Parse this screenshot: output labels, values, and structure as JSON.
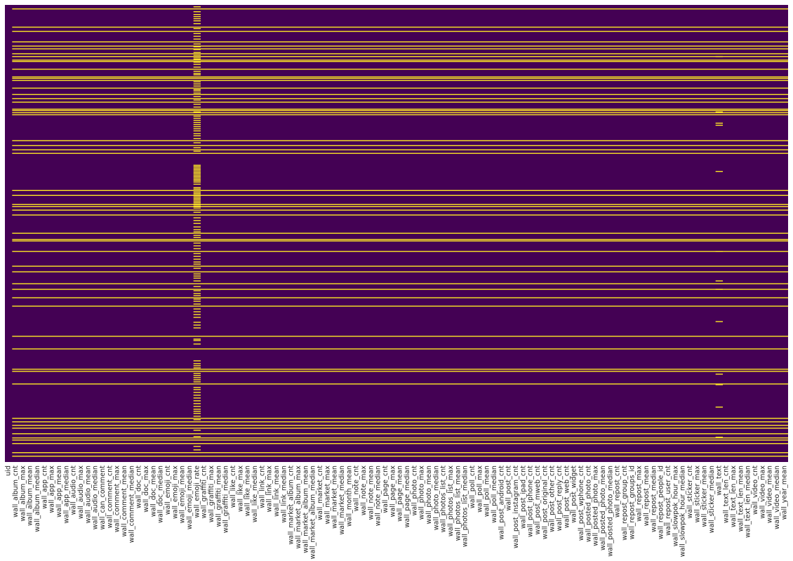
{
  "chart_data": {
    "type": "heatmap",
    "title": "",
    "xlabel": "",
    "ylabel": "",
    "colors": {
      "present": "#440154",
      "missing": "#fde725",
      "background": "#ffffff",
      "text": "#262626"
    },
    "n_rows": 652,
    "columns": [
      "uid",
      "wall_album_cnt",
      "wall_album_max",
      "wall_album_mean",
      "wall_album_median",
      "wall_app_cnt",
      "wall_app_max",
      "wall_app_mean",
      "wall_app_median",
      "wall_audio_cnt",
      "wall_audio_max",
      "wall_audio_mean",
      "wall_audio_median",
      "wall_can_comment",
      "wall_comment_cnt",
      "wall_comment_max",
      "wall_comment_mean",
      "wall_comment_median",
      "wall_doc_cnt",
      "wall_doc_max",
      "wall_doc_mean",
      "wall_doc_median",
      "wall_emoji_cnt",
      "wall_emoji_max",
      "wall_emoji_mean",
      "wall_emoji_median",
      "wall_emoji_rate",
      "wall_graffiti_cnt",
      "wall_graffiti_max",
      "wall_graffiti_mean",
      "wall_graffiti_median",
      "wall_like_cnt",
      "wall_like_max",
      "wall_like_mean",
      "wall_like_median",
      "wall_link_cnt",
      "wall_link_max",
      "wall_link_mean",
      "wall_link_median",
      "wall_market_album_cnt",
      "wall_market_album_max",
      "wall_market_album_mean",
      "wall_market_album_median",
      "wall_market_cnt",
      "wall_market_max",
      "wall_market_mean",
      "wall_market_median",
      "wall_month_mean",
      "wall_note_cnt",
      "wall_note_max",
      "wall_note_mean",
      "wall_note_median",
      "wall_page_cnt",
      "wall_page_max",
      "wall_page_mean",
      "wall_page_median",
      "wall_photo_cnt",
      "wall_photo_max",
      "wall_photo_mean",
      "wall_photo_median",
      "wall_photos_list_cnt",
      "wall_photos_list_max",
      "wall_photos_list_mean",
      "wall_photos_list_median",
      "wall_poll_cnt",
      "wall_poll_max",
      "wall_poll_mean",
      "wall_poll_median",
      "wall_post_android_cnt",
      "wall_post_cnt",
      "wall_post_instagram_cnt",
      "wall_post_ipad_cnt",
      "wall_post_iphone_cnt",
      "wall_post_mweb_cnt",
      "wall_post_original_cnt",
      "wall_post_other_cnt",
      "wall_post_reply_cnt",
      "wall_post_web_cnt",
      "wall_post_widget",
      "wall_post_wphone_cnt",
      "wall_posted_photo_cnt",
      "wall_posted_photo_max",
      "wall_posted_photo_mean",
      "wall_posted_photo_median",
      "wall_repost_cnt",
      "wall_repost_group_cnt",
      "wall_repost_groups_id",
      "wall_repost_max",
      "wall_repost_mean",
      "wall_repost_median",
      "wall_repost_people_id",
      "wall_repost_user_cnt",
      "wall_slowpok_hour_max",
      "wall_slowpok_hour_median",
      "wall_sticker_cnt",
      "wall_sticker_max",
      "wall_sticker_mean",
      "wall_sticker_median",
      "wall_text",
      "wall_text_len_cnt",
      "wall_text_len_max",
      "wall_text_len_mean",
      "wall_text_len_median",
      "wall_video_cnt",
      "wall_video_max",
      "wall_video_mean",
      "wall_video_median",
      "wall_year_mean"
    ],
    "full_missing_rows": [
      5,
      31,
      37,
      52,
      58,
      62,
      69,
      73,
      78,
      80,
      91,
      102,
      104,
      107,
      118,
      127,
      133,
      138,
      148,
      150,
      153,
      156,
      193,
      200,
      206,
      211,
      264,
      271,
      284,
      287,
      292,
      299,
      325,
      334,
      336,
      351,
      372,
      380,
      397,
      405,
      417,
      429,
      472,
      490,
      519,
      522,
      540,
      589,
      594,
      599,
      603,
      611,
      617,
      620,
      625,
      638,
      643
    ],
    "emoji_rate_missing_rows": [
      2,
      9,
      13,
      16,
      19,
      22,
      26,
      33,
      40,
      44,
      48,
      55,
      59,
      63,
      67,
      71,
      75,
      77,
      81,
      84,
      88,
      94,
      97,
      99,
      109,
      112,
      115,
      120,
      122,
      125,
      130,
      135,
      141,
      145,
      152,
      158,
      161,
      164,
      167,
      170,
      173,
      176,
      179,
      183,
      186,
      190,
      196,
      203,
      208,
      228,
      230,
      232,
      234,
      236,
      238,
      240,
      242,
      244,
      246,
      248,
      250,
      252,
      255,
      260,
      262,
      266,
      268,
      270,
      273,
      275,
      277,
      279,
      281,
      283,
      286,
      289,
      295,
      303,
      307,
      311,
      316,
      320,
      323,
      328,
      331,
      339,
      343,
      347,
      354,
      358,
      362,
      366,
      369,
      375,
      383,
      386,
      389,
      393,
      401,
      407,
      411,
      414,
      419,
      422,
      426,
      433,
      437,
      441,
      445,
      452,
      456,
      460,
      476,
      478,
      483,
      507,
      511,
      514,
      517,
      525,
      528,
      531,
      534,
      537,
      545,
      548,
      552,
      556,
      560,
      564,
      568,
      572,
      576,
      579,
      582,
      586,
      591,
      606,
      615,
      629,
      634
    ],
    "text_missing_rows": [
      73,
      152,
      168,
      171,
      237,
      351,
      393,
      405,
      451,
      526,
      541,
      573,
      616
    ]
  }
}
